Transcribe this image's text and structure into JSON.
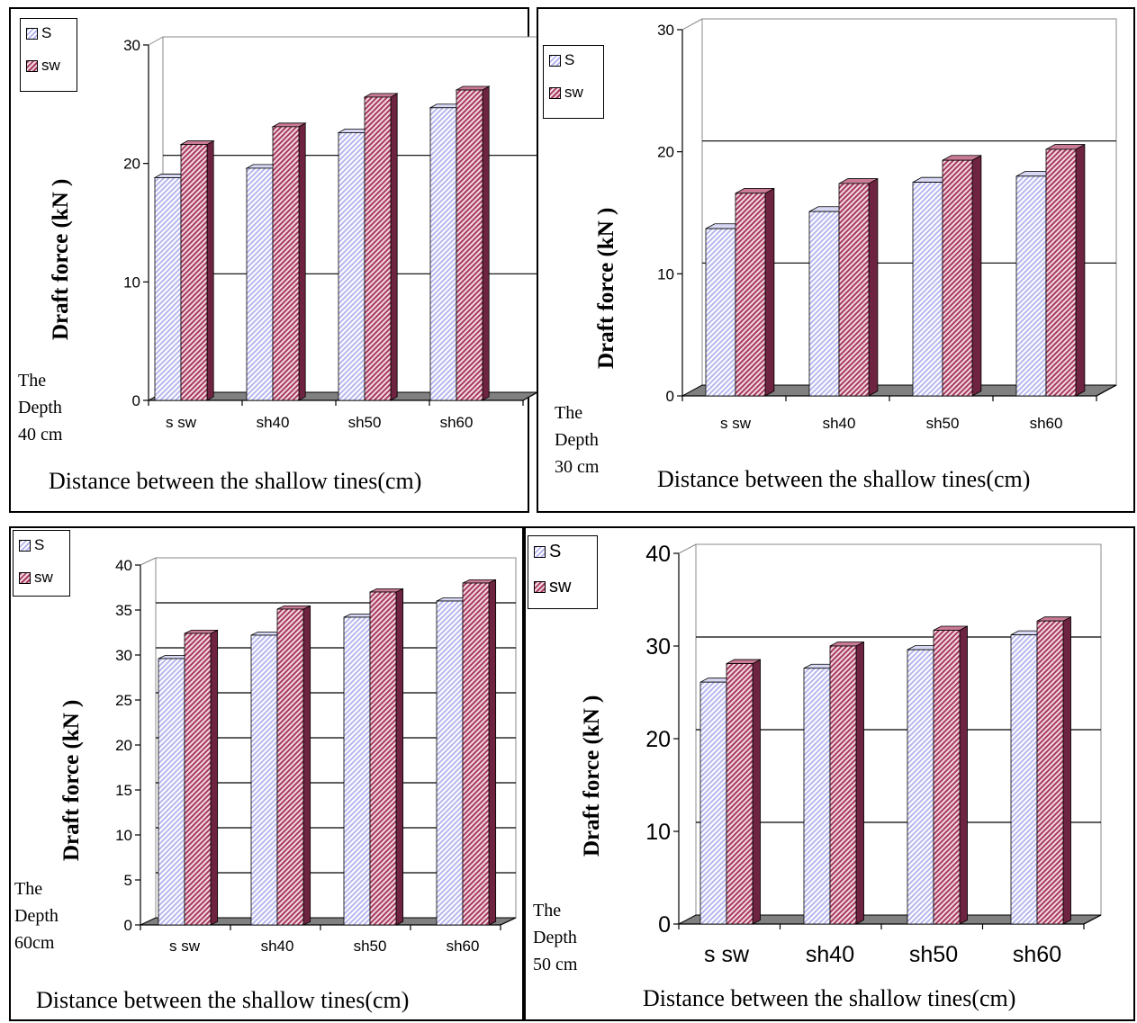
{
  "legend": {
    "s_label": "S",
    "sw_label": "sw"
  },
  "ylabel": "Draft force  (kN )",
  "xlabel": "Distance  between the  shallow  tines(cm)",
  "colors": {
    "s_fill": "#b7b7ee",
    "sw_fill": "#a73a5f",
    "floor": "#808080",
    "grid": "#000000"
  },
  "depth_labels": {
    "d40": [
      "The",
      "Depth",
      "40 cm"
    ],
    "d30": [
      "The",
      "Depth",
      "30 cm"
    ],
    "d60": [
      "The",
      "Depth",
      "60cm"
    ],
    "d50": [
      "The",
      "Depth",
      "50 cm"
    ]
  },
  "chart_data": [
    {
      "type": "bar",
      "panel": "depth-40cm",
      "categories": [
        "s sw",
        "sh40",
        "sh50",
        "sh60"
      ],
      "series": [
        {
          "name": "S",
          "values": [
            18.8,
            19.6,
            22.6,
            24.7
          ]
        },
        {
          "name": "sw",
          "values": [
            21.6,
            23.1,
            25.6,
            26.2
          ]
        }
      ],
      "ylim": [
        0,
        30
      ],
      "yticks": [
        0,
        10,
        20,
        30
      ],
      "gridlines": [
        10,
        20
      ],
      "xlabel": "Distance  between the  shallow  tines(cm)",
      "ylabel": "Draft force  (kN )",
      "legend": "top-left"
    },
    {
      "type": "bar",
      "panel": "depth-30cm",
      "categories": [
        "s sw",
        "sh40",
        "sh50",
        "sh60"
      ],
      "series": [
        {
          "name": "S",
          "values": [
            13.7,
            15.1,
            17.5,
            18.0
          ]
        },
        {
          "name": "sw",
          "values": [
            16.6,
            17.4,
            19.3,
            20.2
          ]
        }
      ],
      "ylim": [
        0,
        30
      ],
      "yticks": [
        0,
        10,
        20,
        30
      ],
      "gridlines": [
        10,
        20
      ],
      "xlabel": "Distance  between the  shallow  tines(cm)",
      "ylabel": "Draft force  (kN )",
      "legend": "top-left"
    },
    {
      "type": "bar",
      "panel": "depth-60cm",
      "categories": [
        "s sw",
        "sh40",
        "sh50",
        "sh60"
      ],
      "series": [
        {
          "name": "S",
          "values": [
            29.6,
            32.2,
            34.2,
            36.0
          ]
        },
        {
          "name": "sw",
          "values": [
            32.4,
            35.1,
            37.0,
            38.0
          ]
        }
      ],
      "ylim": [
        0,
        40
      ],
      "yticks": [
        0,
        5,
        10,
        15,
        20,
        25,
        30,
        35,
        40
      ],
      "gridlines": [
        5,
        10,
        15,
        20,
        25,
        30,
        35
      ],
      "xlabel": "Distance  between the  shallow  tines(cm)",
      "ylabel": "Draft force  (kN )",
      "legend": "top-left"
    },
    {
      "type": "bar",
      "panel": "depth-50cm",
      "categories": [
        "s  sw",
        "sh40",
        "sh50",
        "sh60"
      ],
      "series": [
        {
          "name": "S",
          "values": [
            26.1,
            27.6,
            29.6,
            31.2
          ]
        },
        {
          "name": "sw",
          "values": [
            28.1,
            30.0,
            31.7,
            32.7
          ]
        }
      ],
      "ylim": [
        0,
        40
      ],
      "yticks": [
        0,
        10,
        20,
        30,
        40
      ],
      "gridlines": [
        10,
        20,
        30
      ],
      "xlabel": "Distance  between the  shallow  tines(cm)",
      "ylabel": "Draft force  (kN )",
      "legend": "top-left"
    }
  ]
}
